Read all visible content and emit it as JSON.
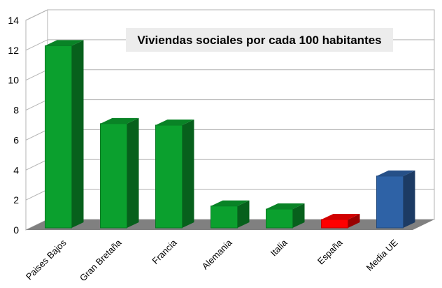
{
  "chart_data": {
    "type": "bar",
    "title": "Viviendas sociales por cada 100 habitantes",
    "categories": [
      "Paises Bajos",
      "Gran Bretaña",
      "Francia",
      "Alemania",
      "Italia",
      "España",
      "Media UE"
    ],
    "values": [
      12.3,
      7.1,
      7.0,
      1.6,
      1.4,
      0.7,
      3.6
    ],
    "ylim": [
      0,
      14
    ],
    "yticks": [
      "0",
      "2",
      "4",
      "6",
      "8",
      "10",
      "12",
      "14"
    ],
    "grid": true,
    "bar_3d": true,
    "colors": [
      "#0ba02e",
      "#0ba02e",
      "#0ba02e",
      "#0ba02e",
      "#0ba02e",
      "#ff0000",
      "#2e62a6"
    ],
    "xlabel": "",
    "ylabel": ""
  }
}
